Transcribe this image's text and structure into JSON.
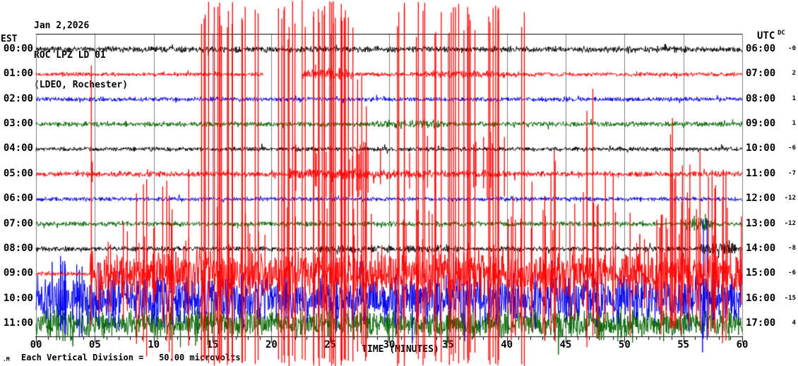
{
  "title": {
    "date": "Jan 2,2026",
    "station": "ROC LPZ LD 01",
    "location": "(LDEO, Rochester)"
  },
  "axes": {
    "left_header": "EST",
    "right_header": "UTC",
    "dc_header": "DC",
    "x_axis_title": "TIME (MINUTES)",
    "x_ticks": [
      "00",
      "05",
      "10",
      "15",
      "20",
      "25",
      "30",
      "35",
      "40",
      "45",
      "50",
      "55",
      "60"
    ],
    "minutes_range": [
      0,
      60
    ],
    "minor_tick_every_minutes": 1,
    "major_tick_every_minutes": 5,
    "grid": "vertical gridlines every 5 minutes"
  },
  "footer": {
    "note": "Each Vertical Division =   50.00 microvolts",
    "watermark": ".M"
  },
  "colors": {
    "background": "#ffffff",
    "text": "#000000",
    "grid": "#7f7f7f",
    "frame": "#000000",
    "trace_cycle": [
      "#000000",
      "#ff0000",
      "#0000ee",
      "#006400"
    ]
  },
  "chart_data": {
    "type": "line",
    "subtype": "helicorder-seismogram",
    "title": "ROC LPZ LD 01 helicorder, Jan 2,2026 (LDEO, Rochester)",
    "xlabel": "TIME (MINUTES)",
    "x_range": [
      0,
      60
    ],
    "vertical_division": "50.00 microvolts",
    "amplitude_units": "display px (one hour-row = 35.4 px = 50 microvolts/div)",
    "rows": [
      {
        "est": "00:00",
        "utc": "06:00",
        "dc": "-0",
        "color_index": 0,
        "quiet_amp": 3.5,
        "gaps": [],
        "bursts": [],
        "spike_clusters": []
      },
      {
        "est": "01:00",
        "utc": "07:00",
        "dc": "2",
        "color_index": 1,
        "quiet_amp": 2.4,
        "gaps": [
          [
            19.3,
            22.6
          ]
        ],
        "bursts": [
          {
            "from": 22.6,
            "to": 27,
            "amp": 5
          },
          {
            "from": 33,
            "to": 41,
            "amp": 4
          }
        ],
        "spike_clusters": [
          {
            "from": 23,
            "to": 26.5,
            "n": 6,
            "up": 14,
            "down": 10,
            "min_frac": 0.5
          }
        ]
      },
      {
        "est": "02:00",
        "utc": "08:00",
        "dc": "1",
        "color_index": 2,
        "quiet_amp": 2.6,
        "gaps": [],
        "bursts": [],
        "spike_clusters": []
      },
      {
        "est": "03:00",
        "utc": "09:00",
        "dc": "1",
        "color_index": 3,
        "quiet_amp": 3.0,
        "gaps": [],
        "bursts": [
          {
            "from": 29,
            "to": 34.5,
            "amp": 5.5
          }
        ],
        "spike_clusters": []
      },
      {
        "est": "04:00",
        "utc": "10:00",
        "dc": "-6",
        "color_index": 0,
        "quiet_amp": 2.6,
        "gaps": [],
        "bursts": [],
        "spike_clusters": []
      },
      {
        "est": "05:00",
        "utc": "11:00",
        "dc": "-7",
        "color_index": 1,
        "quiet_amp": 3.2,
        "gaps": [],
        "bursts": [
          {
            "from": 21.5,
            "to": 30,
            "amp": 6
          },
          {
            "from": 30,
            "to": 40,
            "amp": 4.5
          }
        ],
        "spike_clusters": [
          {
            "from": 4.5,
            "to": 5.0,
            "n": 1,
            "up": 18,
            "down": 12,
            "min_frac": 0.8
          },
          {
            "from": 22,
            "to": 30,
            "n": 14,
            "up": 45,
            "down": 35,
            "min_frac": 0.4
          },
          {
            "from": 31,
            "to": 40,
            "n": 10,
            "up": 60,
            "down": 40,
            "min_frac": 0.4
          }
        ]
      },
      {
        "est": "06:00",
        "utc": "12:00",
        "dc": "-12",
        "color_index": 2,
        "quiet_amp": 2.6,
        "gaps": [],
        "bursts": [],
        "spike_clusters": []
      },
      {
        "est": "07:00",
        "utc": "13:00",
        "dc": "-12",
        "color_index": 3,
        "quiet_amp": 3.0,
        "gaps": [],
        "bursts": [
          {
            "from": 55.5,
            "to": 57.5,
            "amp": 8
          }
        ],
        "spike_clusters": [
          {
            "from": 55.8,
            "to": 57,
            "n": 3,
            "up": 16,
            "down": 12,
            "min_frac": 0.5
          }
        ]
      },
      {
        "est": "08:00",
        "utc": "14:00",
        "dc": "-8",
        "color_index": 0,
        "quiet_amp": 3.0,
        "gaps": [],
        "bursts": [
          {
            "from": 24,
            "to": 36,
            "amp": 4.5
          },
          {
            "from": 56.5,
            "to": 59.5,
            "amp": 7
          }
        ],
        "spike_clusters": [
          {
            "from": 57,
            "to": 59.5,
            "n": 4,
            "up": 14,
            "down": 10,
            "min_frac": 0.5
          }
        ]
      },
      {
        "est": "09:00",
        "utc": "15:00",
        "dc": "-6",
        "color_index": 1,
        "quiet_amp": 2.2,
        "gaps": [],
        "bursts": [
          {
            "from": 4.6,
            "to": 60,
            "amp": 26
          }
        ],
        "spike_clusters": [
          {
            "from": 4.6,
            "to": 4.8,
            "n": 1,
            "up": 300,
            "down": 75,
            "min_frac": 0.95
          },
          {
            "from": 8,
            "to": 13.6,
            "n": 8,
            "up": 150,
            "down": 128,
            "min_frac": 0.5
          },
          {
            "from": 13.9,
            "to": 19.7,
            "n": 20,
            "up": 388,
            "down": 131,
            "min_frac": 0.9
          },
          {
            "from": 20.4,
            "to": 22.1,
            "n": 8,
            "up": 388,
            "down": 131,
            "min_frac": 0.85
          },
          {
            "from": 22.6,
            "to": 27,
            "n": 22,
            "up": 388,
            "down": 131,
            "min_frac": 0.9
          },
          {
            "from": 27.2,
            "to": 28.4,
            "n": 5,
            "up": 310,
            "down": 131,
            "min_frac": 0.6
          },
          {
            "from": 30.4,
            "to": 31.4,
            "n": 4,
            "up": 388,
            "down": 131,
            "min_frac": 0.9
          },
          {
            "from": 31.8,
            "to": 37.6,
            "n": 18,
            "up": 388,
            "down": 131,
            "min_frac": 0.85
          },
          {
            "from": 38.1,
            "to": 39.4,
            "n": 7,
            "up": 388,
            "down": 131,
            "min_frac": 0.9
          },
          {
            "from": 41.2,
            "to": 41.6,
            "n": 2,
            "up": 388,
            "down": 131,
            "min_frac": 0.9
          },
          {
            "from": 5,
            "to": 60,
            "n": 60,
            "up": 95,
            "down": 70,
            "min_frac": 0.35
          },
          {
            "from": 39.5,
            "to": 60,
            "n": 35,
            "up": 160,
            "down": 95,
            "min_frac": 0.45
          },
          {
            "from": 43.4,
            "to": 44.6,
            "n": 3,
            "up": 190,
            "down": 100,
            "min_frac": 0.7
          },
          {
            "from": 46.7,
            "to": 47.4,
            "n": 3,
            "up": 280,
            "down": 110,
            "min_frac": 0.7
          },
          {
            "from": 53.2,
            "to": 54.2,
            "n": 3,
            "up": 230,
            "down": 100,
            "min_frac": 0.7
          },
          {
            "from": 56.4,
            "to": 58.6,
            "n": 5,
            "up": 180,
            "down": 100,
            "min_frac": 0.6
          }
        ]
      },
      {
        "est": "10:00",
        "utc": "16:00",
        "dc": "-15",
        "color_index": 2,
        "quiet_amp": 26,
        "gaps": [],
        "bursts": [],
        "spike_clusters": [
          {
            "from": 0.3,
            "to": 6,
            "n": 10,
            "up": 62,
            "down": 60,
            "min_frac": 0.6
          },
          {
            "from": 6,
            "to": 59.7,
            "n": 40,
            "up": 48,
            "down": 46,
            "min_frac": 0.45
          },
          {
            "from": 56.5,
            "to": 57.5,
            "n": 2,
            "up": 130,
            "down": 60,
            "min_frac": 0.8
          }
        ]
      },
      {
        "est": "11:00",
        "utc": "17:00",
        "dc": "4",
        "color_index": 3,
        "quiet_amp": 15,
        "gaps": [],
        "bursts": [],
        "spike_clusters": [
          {
            "from": 0.5,
            "to": 59.5,
            "n": 30,
            "up": 26,
            "down": 26,
            "min_frac": 0.5
          },
          {
            "from": 1,
            "to": 3,
            "n": 3,
            "up": 30,
            "down": 34,
            "min_frac": 0.6
          },
          {
            "from": 10,
            "to": 16,
            "n": 5,
            "up": 26,
            "down": 36,
            "min_frac": 0.6
          },
          {
            "from": 47,
            "to": 53,
            "n": 6,
            "up": 26,
            "down": 30,
            "min_frac": 0.6
          }
        ]
      }
    ]
  }
}
